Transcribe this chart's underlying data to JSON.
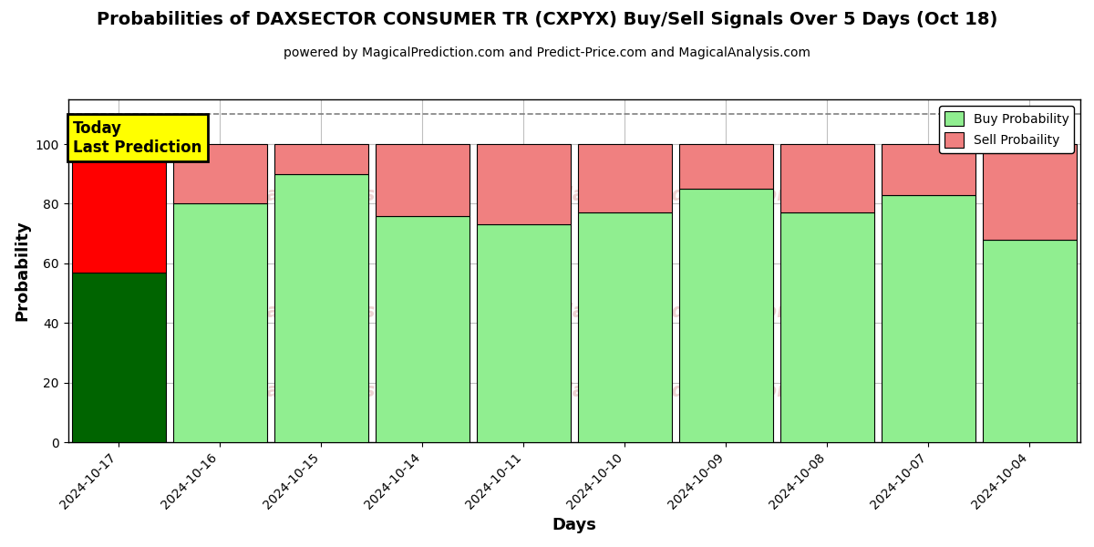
{
  "title": "Probabilities of DAXSECTOR CONSUMER TR (CXPYX) Buy/Sell Signals Over 5 Days (Oct 18)",
  "subtitle": "powered by MagicalPrediction.com and Predict-Price.com and MagicalAnalysis.com",
  "xlabel": "Days",
  "ylabel": "Probability",
  "categories": [
    "2024-10-17",
    "2024-10-16",
    "2024-10-15",
    "2024-10-14",
    "2024-10-11",
    "2024-10-10",
    "2024-10-09",
    "2024-10-08",
    "2024-10-07",
    "2024-10-04"
  ],
  "buy_values": [
    57,
    80,
    90,
    76,
    73,
    77,
    85,
    77,
    83,
    68
  ],
  "sell_values": [
    43,
    20,
    10,
    24,
    27,
    23,
    15,
    23,
    17,
    32
  ],
  "today_buy_color": "#006400",
  "today_sell_color": "#FF0000",
  "buy_color": "#90EE90",
  "sell_color": "#F08080",
  "ylim": [
    0,
    115
  ],
  "yticks": [
    0,
    20,
    40,
    60,
    80,
    100
  ],
  "dashed_line_y": 110,
  "today_label": "Today\nLast Prediction",
  "today_label_bg": "#FFFF00",
  "legend_buy_label": "Buy Probability",
  "legend_sell_label": "Sell Probaility",
  "watermark_left": "calAnalysis.com",
  "watermark_mid": "MagicalPrediction.com",
  "background_color": "#ffffff",
  "grid_color": "#c0c0c0"
}
